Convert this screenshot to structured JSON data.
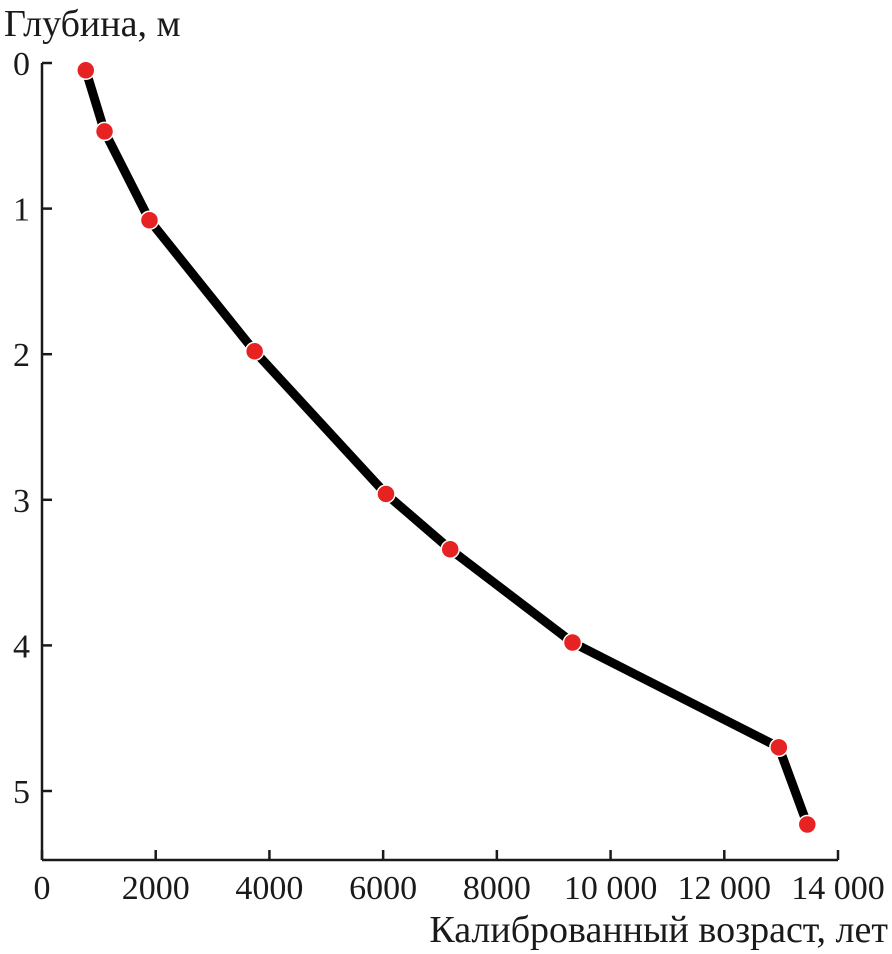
{
  "chart_data": {
    "type": "line",
    "xlabel": "Калиброванный возраст, лет",
    "ylabel": "Глубина, м",
    "xlim": [
      0,
      14000
    ],
    "ylim": [
      0,
      5.5
    ],
    "y_inverted": true,
    "x_ticks": [
      0,
      2000,
      4000,
      6000,
      8000,
      10000,
      12000,
      14000
    ],
    "x_tick_labels": [
      "0",
      "2000",
      "4000",
      "6000",
      "8000",
      "10 000",
      "12 000",
      "14 000"
    ],
    "y_ticks": [
      0,
      1,
      2,
      3,
      4,
      5
    ],
    "y_tick_labels": [
      "0",
      "1",
      "2",
      "3",
      "4",
      "5"
    ],
    "grid": false,
    "series": [
      {
        "x": [
          770,
          1100,
          1890,
          3740,
          6050,
          7180,
          9330,
          12960,
          13460
        ],
        "y": [
          0.05,
          0.47,
          1.08,
          1.98,
          2.96,
          3.34,
          3.98,
          4.7,
          5.23
        ]
      }
    ],
    "colors": {
      "line": "#000000",
      "marker": "#e62222",
      "axis": "#1a1a1a"
    }
  }
}
